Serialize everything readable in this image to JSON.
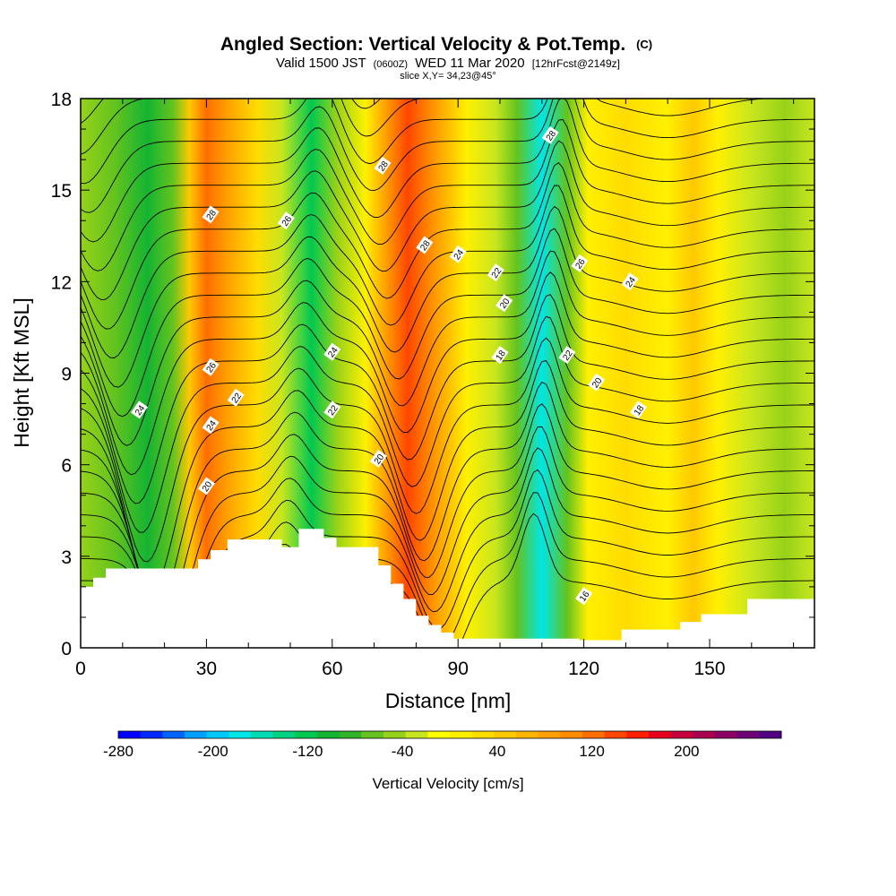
{
  "chart_data": {
    "type": "heatmap",
    "title": "Angled Section: Vertical Velocity & Pot.Temp.",
    "title_mark": "(C)",
    "subtitle_prefix": "Valid 1500 JST",
    "subtitle_utc": "(0600Z)",
    "subtitle_date": "WED 11 Mar 2020",
    "subtitle_run": "[12hrFcst@2149z]",
    "slice_note": "slice X,Y= 34,23@45°",
    "xlabel": "Distance [nm]",
    "ylabel": "Height [Kft MSL]",
    "xlim": [
      0,
      175
    ],
    "ylim": [
      0,
      18
    ],
    "x_ticks": [
      0,
      30,
      60,
      90,
      120,
      150
    ],
    "y_ticks": [
      0,
      3,
      6,
      9,
      12,
      15,
      18
    ],
    "colorbar": {
      "title": "Vertical Velocity [cm/s]",
      "range": [
        -280,
        280
      ],
      "step": 20,
      "tick_labels": [
        "-280",
        "-200",
        "-120",
        "-40",
        "40",
        "120",
        "200"
      ],
      "tick_values": [
        -280,
        -200,
        -120,
        -40,
        40,
        120,
        200
      ],
      "colors": [
        "#0000ff",
        "#0028ff",
        "#0064ff",
        "#00a0ff",
        "#00c8ff",
        "#00e6e6",
        "#00dcb4",
        "#00d282",
        "#00c850",
        "#14b432",
        "#32b428",
        "#64c31e",
        "#96d219",
        "#c8e61e",
        "#ffff00",
        "#fff000",
        "#ffdc00",
        "#ffc800",
        "#ffb400",
        "#ffa000",
        "#ff8c00",
        "#ff6e00",
        "#ff4600",
        "#ff1e00",
        "#e6001e",
        "#c8003c",
        "#aa0050",
        "#8c0064",
        "#6e0078",
        "#500080"
      ]
    },
    "velocity_bands": [
      {
        "x": 0,
        "w": -40
      },
      {
        "x": 8,
        "w": -60
      },
      {
        "x": 16,
        "w": -100
      },
      {
        "x": 22,
        "w": -60
      },
      {
        "x": 26,
        "w": 60
      },
      {
        "x": 30,
        "w": 150
      },
      {
        "x": 35,
        "w": 110
      },
      {
        "x": 42,
        "w": 40
      },
      {
        "x": 48,
        "w": -20
      },
      {
        "x": 55,
        "w": -120
      },
      {
        "x": 61,
        "w": -40
      },
      {
        "x": 68,
        "w": 20
      },
      {
        "x": 78,
        "w": 160
      },
      {
        "x": 85,
        "w": 110
      },
      {
        "x": 92,
        "w": 30
      },
      {
        "x": 99,
        "w": -10
      },
      {
        "x": 104,
        "w": -60
      },
      {
        "x": 110,
        "w": -180
      },
      {
        "x": 116,
        "w": -60
      },
      {
        "x": 121,
        "w": 30
      },
      {
        "x": 130,
        "w": 40
      },
      {
        "x": 140,
        "w": 25
      },
      {
        "x": 146,
        "w": 60
      },
      {
        "x": 152,
        "w": 20
      },
      {
        "x": 160,
        "w": -10
      },
      {
        "x": 168,
        "w": -30
      },
      {
        "x": 175,
        "w": -20
      }
    ],
    "terrain": [
      [
        0,
        2
      ],
      [
        3,
        2
      ],
      [
        3,
        2.3
      ],
      [
        6,
        2.3
      ],
      [
        6,
        2.6
      ],
      [
        10,
        2.6
      ],
      [
        28,
        2.6
      ],
      [
        28,
        2.9
      ],
      [
        31,
        2.9
      ],
      [
        31,
        3.2
      ],
      [
        35,
        3.2
      ],
      [
        35,
        3.55
      ],
      [
        48,
        3.55
      ],
      [
        48,
        3.3
      ],
      [
        52,
        3.3
      ],
      [
        52,
        3.9
      ],
      [
        58,
        3.9
      ],
      [
        58,
        3.6
      ],
      [
        61,
        3.6
      ],
      [
        61,
        3.3
      ],
      [
        71,
        3.3
      ],
      [
        71,
        2.7
      ],
      [
        74,
        2.7
      ],
      [
        74,
        2.1
      ],
      [
        77,
        2.1
      ],
      [
        77,
        1.6
      ],
      [
        80,
        1.6
      ],
      [
        80,
        1.05
      ],
      [
        83,
        1.05
      ],
      [
        83,
        0.75
      ],
      [
        86,
        0.75
      ],
      [
        86,
        0.5
      ],
      [
        89,
        0.5
      ],
      [
        89,
        0.3
      ],
      [
        119,
        0.3
      ],
      [
        119,
        0.25
      ],
      [
        129,
        0.25
      ],
      [
        129,
        0.6
      ],
      [
        143,
        0.6
      ],
      [
        143,
        0.85
      ],
      [
        148,
        0.85
      ],
      [
        148,
        1.1
      ],
      [
        159,
        1.1
      ],
      [
        159,
        1.6
      ],
      [
        175,
        1.6
      ]
    ],
    "contour_labels": [
      {
        "text": "24",
        "x": 14,
        "y": 7.8
      },
      {
        "text": "20",
        "x": 30,
        "y": 5.3
      },
      {
        "text": "24",
        "x": 31,
        "y": 7.3
      },
      {
        "text": "22",
        "x": 37,
        "y": 8.2
      },
      {
        "text": "26",
        "x": 31,
        "y": 9.2
      },
      {
        "text": "28",
        "x": 31,
        "y": 14.2
      },
      {
        "text": "26",
        "x": 49,
        "y": 14.0
      },
      {
        "text": "24",
        "x": 60,
        "y": 9.7
      },
      {
        "text": "22",
        "x": 60,
        "y": 7.8
      },
      {
        "text": "20",
        "x": 71,
        "y": 6.2
      },
      {
        "text": "28",
        "x": 72,
        "y": 15.8
      },
      {
        "text": "28",
        "x": 82,
        "y": 13.2
      },
      {
        "text": "24",
        "x": 90,
        "y": 12.9
      },
      {
        "text": "22",
        "x": 99,
        "y": 12.3
      },
      {
        "text": "20",
        "x": 101,
        "y": 11.3
      },
      {
        "text": "18",
        "x": 100,
        "y": 9.6
      },
      {
        "text": "28",
        "x": 112,
        "y": 16.8
      },
      {
        "text": "26",
        "x": 119,
        "y": 12.6
      },
      {
        "text": "24",
        "x": 131,
        "y": 12.0
      },
      {
        "text": "22",
        "x": 116,
        "y": 9.6
      },
      {
        "text": "20",
        "x": 123,
        "y": 8.7
      },
      {
        "text": "18",
        "x": 133,
        "y": 7.8
      },
      {
        "text": "16",
        "x": 120,
        "y": 1.7
      }
    ]
  }
}
